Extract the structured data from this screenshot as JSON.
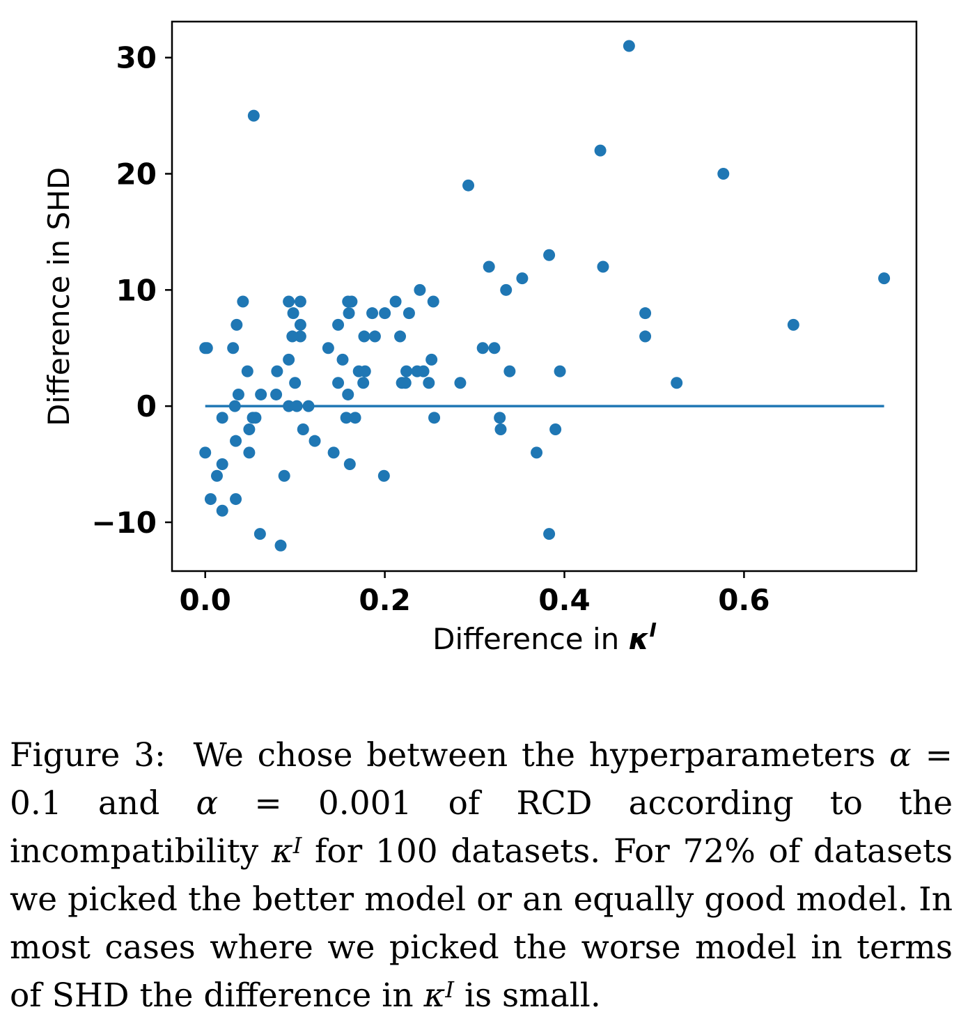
{
  "chart_data": {
    "type": "scatter",
    "xlabel_prefix": "Difference in ",
    "xlabel_symbol": "κ",
    "xlabel_sup": "I",
    "ylabel": "Difference in SHD",
    "xlim": [
      -0.037,
      0.792
    ],
    "ylim": [
      -14.2,
      33.1
    ],
    "xticks": [
      0.0,
      0.2,
      0.4,
      0.6
    ],
    "xtick_labels": [
      "0.0",
      "0.2",
      "0.4",
      "0.6"
    ],
    "yticks": [
      -10,
      0,
      10,
      20,
      30
    ],
    "ytick_labels": [
      "−10",
      "0",
      "10",
      "20",
      "30"
    ],
    "grid": false,
    "marker_color": "#1f77b4",
    "reference_line": {
      "x": [
        0.0,
        0.756
      ],
      "y": 0,
      "color": "#1f77b4"
    },
    "points": [
      [
        0.054,
        25
      ],
      [
        0.472,
        31
      ],
      [
        0.44,
        22
      ],
      [
        0.577,
        20
      ],
      [
        0.293,
        19
      ],
      [
        0.383,
        13
      ],
      [
        0.316,
        12
      ],
      [
        0.443,
        12
      ],
      [
        0.756,
        11
      ],
      [
        0.353,
        11
      ],
      [
        0.335,
        10
      ],
      [
        0.239,
        10
      ],
      [
        0.042,
        9
      ],
      [
        0.093,
        9
      ],
      [
        0.106,
        9
      ],
      [
        0.159,
        9
      ],
      [
        0.163,
        9
      ],
      [
        0.212,
        9
      ],
      [
        0.254,
        9
      ],
      [
        0.035,
        7
      ],
      [
        0.148,
        7
      ],
      [
        0.106,
        7
      ],
      [
        0.655,
        7
      ],
      [
        0.098,
        8
      ],
      [
        0.16,
        8
      ],
      [
        0.186,
        8
      ],
      [
        0.2,
        8
      ],
      [
        0.227,
        8
      ],
      [
        0.49,
        8
      ],
      [
        0.097,
        6
      ],
      [
        0.106,
        6
      ],
      [
        0.177,
        6
      ],
      [
        0.189,
        6
      ],
      [
        0.217,
        6
      ],
      [
        0.49,
        6
      ],
      [
        0.0,
        5
      ],
      [
        0.002,
        5
      ],
      [
        0.031,
        5
      ],
      [
        0.137,
        5
      ],
      [
        0.309,
        5
      ],
      [
        0.322,
        5
      ],
      [
        0.093,
        4
      ],
      [
        0.153,
        4
      ],
      [
        0.252,
        4
      ],
      [
        0.047,
        3
      ],
      [
        0.08,
        3
      ],
      [
        0.171,
        3
      ],
      [
        0.178,
        3
      ],
      [
        0.224,
        3
      ],
      [
        0.236,
        3
      ],
      [
        0.243,
        3
      ],
      [
        0.339,
        3
      ],
      [
        0.395,
        3
      ],
      [
        0.1,
        2
      ],
      [
        0.148,
        2
      ],
      [
        0.176,
        2
      ],
      [
        0.219,
        2
      ],
      [
        0.223,
        2
      ],
      [
        0.249,
        2
      ],
      [
        0.284,
        2
      ],
      [
        0.525,
        2
      ],
      [
        0.037,
        1
      ],
      [
        0.062,
        1
      ],
      [
        0.079,
        1
      ],
      [
        0.159,
        1
      ],
      [
        0.033,
        0
      ],
      [
        0.093,
        0
      ],
      [
        0.102,
        0
      ],
      [
        0.115,
        0
      ],
      [
        0.019,
        -1
      ],
      [
        0.053,
        -1
      ],
      [
        0.056,
        -1
      ],
      [
        0.157,
        -1
      ],
      [
        0.167,
        -1
      ],
      [
        0.255,
        -1
      ],
      [
        0.328,
        -1
      ],
      [
        0.049,
        -2
      ],
      [
        0.109,
        -2
      ],
      [
        0.329,
        -2
      ],
      [
        0.39,
        -2
      ],
      [
        0.034,
        -3
      ],
      [
        0.122,
        -3
      ],
      [
        0.0,
        -4
      ],
      [
        0.049,
        -4
      ],
      [
        0.143,
        -4
      ],
      [
        0.369,
        -4
      ],
      [
        0.019,
        -5
      ],
      [
        0.161,
        -5
      ],
      [
        0.013,
        -6
      ],
      [
        0.088,
        -6
      ],
      [
        0.199,
        -6
      ],
      [
        0.006,
        -8
      ],
      [
        0.034,
        -8
      ],
      [
        0.019,
        -9
      ],
      [
        0.061,
        -11
      ],
      [
        0.383,
        -11
      ],
      [
        0.084,
        -12
      ]
    ]
  },
  "caption": {
    "label": "Figure 3:",
    "text_1": "We chose between the hyperparameters",
    "alpha": "α",
    "eq": " = ",
    "value_1": "0.1",
    "and": " and ",
    "value_2": "0.001",
    "text_2": " of RCD according to the incompatibility ",
    "kappa": "κ",
    "sup": "I",
    "text_3": " for 100 datasets. For 72% of datasets we picked the better model or an equally good model. In most cases where we picked the worse model in terms of SHD the difference in ",
    "text_4": " is small."
  }
}
